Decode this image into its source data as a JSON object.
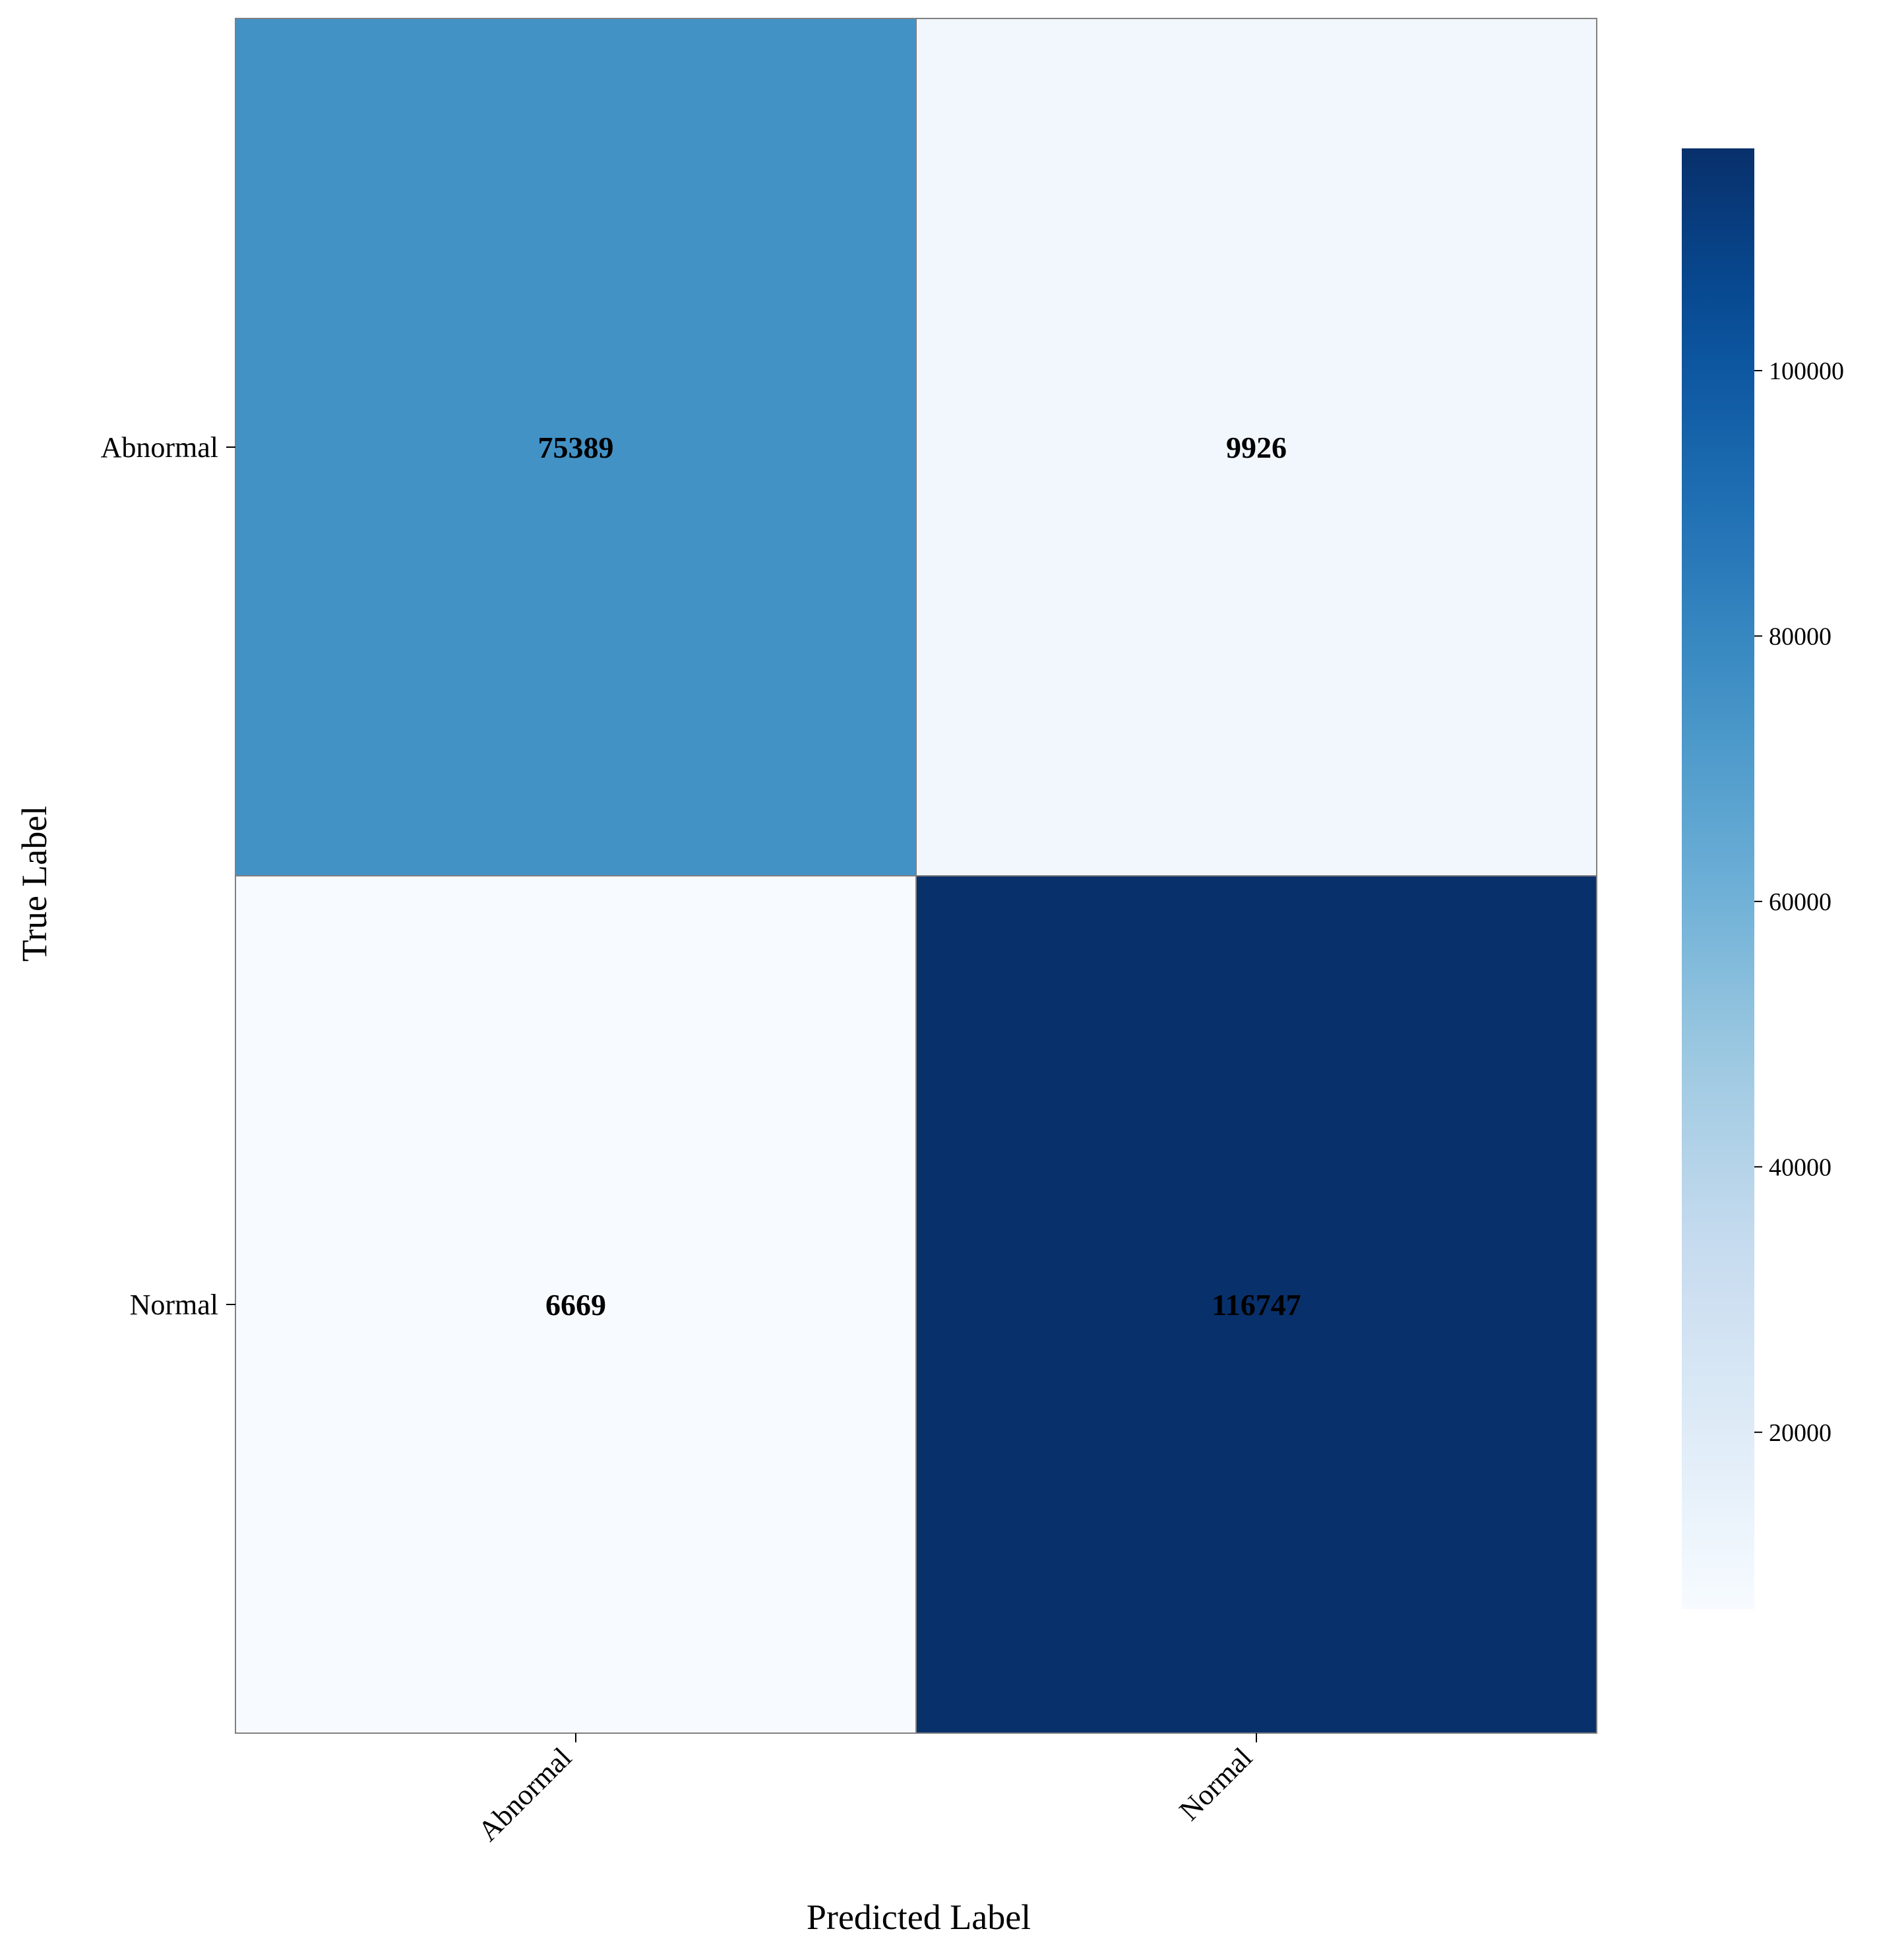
{
  "chart_data": {
    "type": "heatmap",
    "title": "",
    "xlabel": "Predicted Label",
    "ylabel": "True Label",
    "x_categories": [
      "Abnormal",
      "Normal"
    ],
    "y_categories": [
      "Abnormal",
      "Normal"
    ],
    "values": [
      [
        75389,
        9926
      ],
      [
        6669,
        116747
      ]
    ],
    "colormap": "Blues",
    "colorbar": {
      "range": [
        6669,
        116747
      ],
      "ticks": [
        20000,
        40000,
        60000,
        80000,
        100000
      ],
      "tick_labels": [
        "20000",
        "40000",
        "60000",
        "80000",
        "100000"
      ]
    },
    "cell_text_color": "#000000",
    "border_color": "#808080",
    "grid": false
  }
}
